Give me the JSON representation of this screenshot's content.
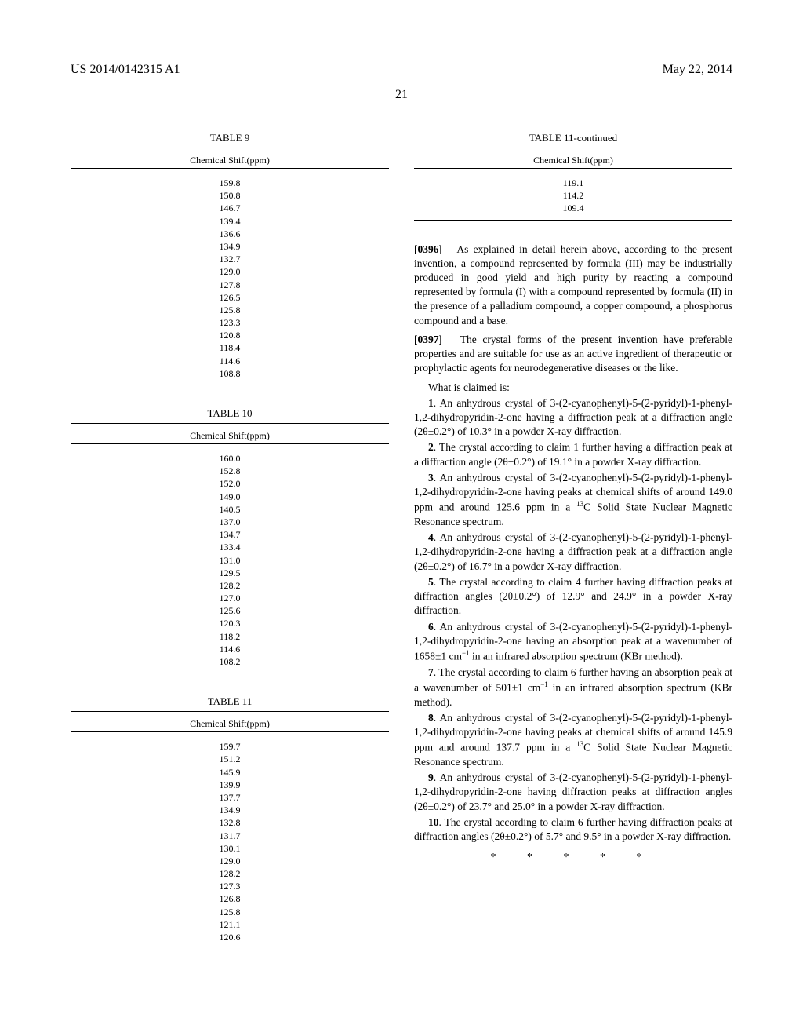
{
  "header": {
    "left": "US 2014/0142315 A1",
    "right": "May 22, 2014"
  },
  "page_number": "21",
  "tables": {
    "t9": {
      "title": "TABLE 9",
      "subheader": "Chemical Shift(ppm)",
      "values": [
        "159.8",
        "150.8",
        "146.7",
        "139.4",
        "136.6",
        "134.9",
        "132.7",
        "129.0",
        "127.8",
        "126.5",
        "125.8",
        "123.3",
        "120.8",
        "118.4",
        "114.6",
        "108.8"
      ]
    },
    "t10": {
      "title": "TABLE 10",
      "subheader": "Chemical Shift(ppm)",
      "values": [
        "160.0",
        "152.8",
        "152.0",
        "149.0",
        "140.5",
        "137.0",
        "134.7",
        "133.4",
        "131.0",
        "129.5",
        "128.2",
        "127.0",
        "125.6",
        "120.3",
        "118.2",
        "114.6",
        "108.2"
      ]
    },
    "t11": {
      "title": "TABLE 11",
      "subheader": "Chemical Shift(ppm)",
      "values": [
        "159.7",
        "151.2",
        "145.9",
        "139.9",
        "137.7",
        "134.9",
        "132.8",
        "131.7",
        "130.1",
        "129.0",
        "128.2",
        "127.3",
        "126.8",
        "125.8",
        "121.1",
        "120.6"
      ]
    },
    "t11cont": {
      "title": "TABLE 11-continued",
      "subheader": "Chemical Shift(ppm)",
      "values": [
        "119.1",
        "114.2",
        "109.4"
      ]
    }
  },
  "paragraphs": {
    "p0396": {
      "label": "[0396]",
      "text": "As explained in detail herein above, according to the present invention, a compound represented by formula (III) may be industrially produced in good yield and high purity by reacting a compound represented by formula (I) with a compound represented by formula (II) in the presence of a palladium compound, a copper compound, a phosphorus compound and a base."
    },
    "p0397": {
      "label": "[0397]",
      "text": "The crystal forms of the present invention have preferable properties and are suitable for use as an active ingredient of therapeutic or prophylactic agents for neurodegenerative diseases or the like."
    }
  },
  "claims_intro": "What is claimed is:",
  "claims": {
    "c1": {
      "num": "1",
      "text": ". An anhydrous crystal of 3-(2-cyanophenyl)-5-(2-pyridyl)-1-phenyl-1,2-dihydropyridin-2-one having a diffraction peak at a diffraction angle (2θ±0.2°) of 10.3° in a powder X-ray diffraction."
    },
    "c2": {
      "num": "2",
      "text": ". The crystal according to claim 1 further having a diffraction peak at a diffraction angle (2θ±0.2°) of 19.1° in a powder X-ray diffraction."
    },
    "c3": {
      "num": "3",
      "text_a": ". An anhydrous crystal of 3-(2-cyanophenyl)-5-(2-pyridyl)-1-phenyl-1,2-dihydropyridin-2-one having peaks at chemical shifts of around 149.0 ppm and around 125.6 ppm in a ",
      "text_b": "C Solid State Nuclear Magnetic Resonance spectrum."
    },
    "c4": {
      "num": "4",
      "text": ". An anhydrous crystal of 3-(2-cyanophenyl)-5-(2-pyridyl)-1-phenyl-1,2-dihydropyridin-2-one having a diffraction peak at a diffraction angle (2θ±0.2°) of 16.7° in a powder X-ray diffraction."
    },
    "c5": {
      "num": "5",
      "text": ". The crystal according to claim 4 further having diffraction peaks at diffraction angles (2θ±0.2°) of 12.9° and 24.9° in a powder X-ray diffraction."
    },
    "c6": {
      "num": "6",
      "text_a": ". An anhydrous crystal of 3-(2-cyanophenyl)-5-(2-pyridyl)-1-phenyl-1,2-dihydropyridin-2-one having an absorption peak at a wavenumber of 1658±1 cm",
      "text_b": " in an infrared absorption spectrum (KBr method)."
    },
    "c7": {
      "num": "7",
      "text_a": ". The crystal according to claim 6 further having an absorption peak at a wavenumber of 501±1 cm",
      "text_b": " in an infrared absorption spectrum (KBr method)."
    },
    "c8": {
      "num": "8",
      "text_a": ". An anhydrous crystal of 3-(2-cyanophenyl)-5-(2-pyridyl)-1-phenyl-1,2-dihydropyridin-2-one having peaks at chemical shifts of around 145.9 ppm and around 137.7 ppm in a ",
      "text_b": "C Solid State Nuclear Magnetic Resonance spectrum."
    },
    "c9": {
      "num": "9",
      "text": ". An anhydrous crystal of 3-(2-cyanophenyl)-5-(2-pyridyl)-1-phenyl-1,2-dihydropyridin-2-one having diffraction peaks at diffraction angles (2θ±0.2°) of 23.7° and 25.0° in a powder X-ray diffraction."
    },
    "c10": {
      "num": "10",
      "text": ". The crystal according to claim 6 further having diffraction peaks at diffraction angles (2θ±0.2°) of 5.7° and 9.5° in a powder X-ray diffraction."
    }
  },
  "stars": "*   *   *   *   *",
  "sup13": "13",
  "supm1": "−1"
}
